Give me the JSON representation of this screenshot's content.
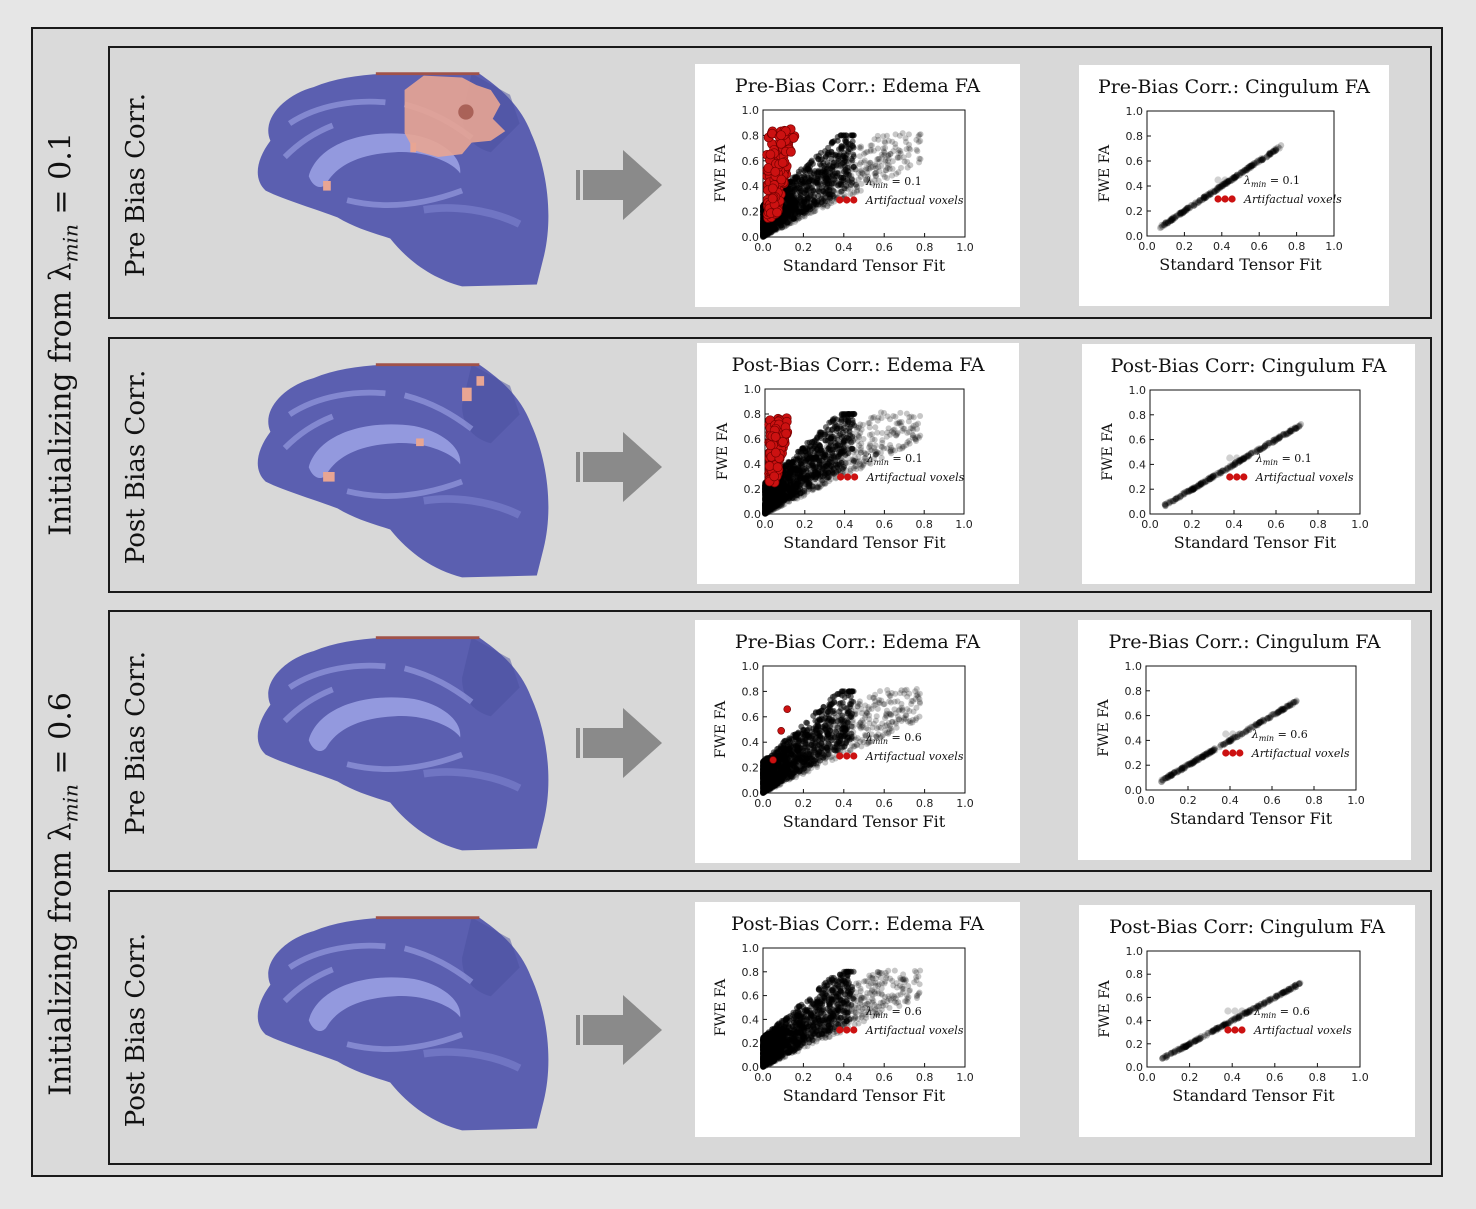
{
  "groups": [
    {
      "label": "Initializing from λ",
      "sub": "min",
      "eq": " = 0.1"
    },
    {
      "label": "Initializing from λ",
      "sub": "min",
      "eq": " = 0.6"
    }
  ],
  "rows": [
    {
      "label": "Pre Bias Corr.",
      "lambda": "0.1",
      "brain_highlight": "large"
    },
    {
      "label": "Post Bias Corr.",
      "lambda": "0.1",
      "brain_highlight": "small"
    },
    {
      "label": "Pre Bias Corr.",
      "lambda": "0.6",
      "brain_highlight": "none"
    },
    {
      "label": "Post Bias Corr.",
      "lambda": "0.6",
      "brain_highlight": "none"
    }
  ],
  "colors": {
    "brain": "#5b5fb0",
    "brain_light": "#9ea3e6",
    "highlight": "#e8a593",
    "artifact": "#cc1111",
    "normal": "#000000",
    "arrow": "#8a8a8a"
  },
  "icons": {
    "arrow": "right-arrow-icon",
    "brain": "brain-sagittal-slice"
  },
  "chart_data": [
    {
      "type": "scatter",
      "kind": "edema",
      "title": "Pre-Bias Corr.: Edema FA",
      "xlabel": "Standard Tensor Fit",
      "ylabel": "FWE FA",
      "xlim": [
        0,
        1
      ],
      "ylim": [
        0,
        1
      ],
      "xticks": [
        "0.0",
        "0.2",
        "0.4",
        "0.6",
        "0.8",
        "1.0"
      ],
      "yticks": [
        "0.0",
        "0.2",
        "0.4",
        "0.6",
        "0.8",
        "1.0"
      ],
      "legend": [
        {
          "name": "λ",
          "sub": "min",
          "eq": " = 0.1"
        },
        {
          "name": "Artifactual voxels"
        }
      ],
      "legend_position": "lower-right",
      "series": [
        {
          "name": "λmin = 0.1",
          "color": "#000000",
          "description": "dense wedge, x 0.0-0.78, y 0.0-0.82"
        },
        {
          "name": "Artifactual voxels",
          "color": "#cc1111",
          "x_range": [
            0.02,
            0.17
          ],
          "y_range": [
            0.15,
            0.85
          ]
        }
      ]
    },
    {
      "type": "scatter",
      "kind": "cingulum",
      "title": "Pre-Bias Corr.: Cingulum FA",
      "xlabel": "Standard Tensor Fit",
      "ylabel": "FWE FA",
      "xlim": [
        0,
        1
      ],
      "ylim": [
        0,
        1
      ],
      "xticks": [
        "0.0",
        "0.2",
        "0.4",
        "0.6",
        "0.8",
        "1.0"
      ],
      "yticks": [
        "0.0",
        "0.2",
        "0.4",
        "0.6",
        "0.8",
        "1.0"
      ],
      "legend": [
        {
          "name": "λ",
          "sub": "min",
          "eq": " = 0.1"
        },
        {
          "name": "Artifactual voxels"
        }
      ],
      "legend_position": "lower-right",
      "series": [
        {
          "name": "λmin = 0.1",
          "color": "#000000",
          "x_range": [
            0.07,
            0.72
          ],
          "y_range": [
            0.07,
            0.72
          ]
        }
      ]
    },
    {
      "type": "scatter",
      "kind": "edema",
      "title": "Post-Bias Corr.: Edema FA",
      "xlabel": "Standard Tensor Fit",
      "ylabel": "FWE FA",
      "xlim": [
        0,
        1
      ],
      "ylim": [
        0,
        1
      ],
      "xticks": [
        "0.0",
        "0.2",
        "0.4",
        "0.6",
        "0.8",
        "1.0"
      ],
      "yticks": [
        "0.0",
        "0.2",
        "0.4",
        "0.6",
        "0.8",
        "1.0"
      ],
      "legend": [
        {
          "name": "λ",
          "sub": "min",
          "eq": " = 0.1"
        },
        {
          "name": "Artifactual voxels"
        }
      ],
      "legend_position": "lower-right",
      "series": [
        {
          "name": "λmin = 0.1",
          "color": "#000000",
          "description": "dense wedge, x 0.0-0.76, y 0.0-0.80"
        },
        {
          "name": "Artifactual voxels",
          "color": "#cc1111",
          "x_range": [
            0.02,
            0.13
          ],
          "y_range": [
            0.25,
            0.77
          ]
        }
      ]
    },
    {
      "type": "scatter",
      "kind": "cingulum",
      "title": "Post-Bias Corr: Cingulum FA",
      "xlabel": "Standard Tensor Fit",
      "ylabel": "FWE FA",
      "xlim": [
        0,
        1
      ],
      "ylim": [
        0,
        1
      ],
      "xticks": [
        "0.0",
        "0.2",
        "0.4",
        "0.6",
        "0.8",
        "1.0"
      ],
      "yticks": [
        "0.0",
        "0.2",
        "0.4",
        "0.6",
        "0.8",
        "1.0"
      ],
      "legend": [
        {
          "name": "λ",
          "sub": "min",
          "eq": " = 0.1"
        },
        {
          "name": "Artifactual voxels"
        }
      ],
      "legend_position": "lower-right",
      "series": [
        {
          "name": "λmin = 0.1",
          "color": "#000000",
          "x_range": [
            0.07,
            0.72
          ],
          "y_range": [
            0.07,
            0.72
          ]
        }
      ]
    },
    {
      "type": "scatter",
      "kind": "edema",
      "title": "Pre-Bias Corr.: Edema FA",
      "xlabel": "Standard Tensor Fit",
      "ylabel": "FWE FA",
      "xlim": [
        0,
        1
      ],
      "ylim": [
        0,
        1
      ],
      "xticks": [
        "0.0",
        "0.2",
        "0.4",
        "0.6",
        "0.8",
        "1.0"
      ],
      "yticks": [
        "0.0",
        "0.2",
        "0.4",
        "0.6",
        "0.8",
        "1.0"
      ],
      "legend": [
        {
          "name": "λ",
          "sub": "min",
          "eq": " = 0.6"
        },
        {
          "name": "Artifactual voxels"
        }
      ],
      "legend_position": "lower-right",
      "series": [
        {
          "name": "λmin = 0.6",
          "color": "#000000",
          "description": "dense wedge, x 0.0-0.78, y 0.0-0.76"
        },
        {
          "name": "Artifactual voxels",
          "color": "#cc1111",
          "points": [
            [
              0.12,
              0.66
            ],
            [
              0.09,
              0.49
            ],
            [
              0.05,
              0.26
            ]
          ]
        }
      ]
    },
    {
      "type": "scatter",
      "kind": "cingulum",
      "title": "Pre-Bias Corr.: Cingulum FA",
      "xlabel": "Standard Tensor Fit",
      "ylabel": "FWE FA",
      "xlim": [
        0,
        1
      ],
      "ylim": [
        0,
        1
      ],
      "xticks": [
        "0.0",
        "0.2",
        "0.4",
        "0.6",
        "0.8",
        "1.0"
      ],
      "yticks": [
        "0.0",
        "0.2",
        "0.4",
        "0.6",
        "0.8",
        "1.0"
      ],
      "legend": [
        {
          "name": "λ",
          "sub": "min",
          "eq": " = 0.6"
        },
        {
          "name": "Artifactual voxels"
        }
      ],
      "legend_position": "lower-right",
      "series": [
        {
          "name": "λmin = 0.6",
          "color": "#000000",
          "x_range": [
            0.07,
            0.72
          ],
          "y_range": [
            0.07,
            0.72
          ]
        }
      ]
    },
    {
      "type": "scatter",
      "kind": "edema",
      "title": "Post-Bias Corr.: Edema FA",
      "xlabel": "Standard Tensor Fit",
      "ylabel": "FWE FA",
      "xlim": [
        0,
        1
      ],
      "ylim": [
        0,
        1
      ],
      "xticks": [
        "0.0",
        "0.2",
        "0.4",
        "0.6",
        "0.8",
        "1.0"
      ],
      "yticks": [
        "0.0",
        "0.2",
        "0.4",
        "0.6",
        "0.8",
        "1.0"
      ],
      "legend": [
        {
          "name": "λ",
          "sub": "min",
          "eq": " = 0.6"
        },
        {
          "name": "Artifactual voxels"
        }
      ],
      "legend_position": "lower-right",
      "series": [
        {
          "name": "λmin = 0.6",
          "color": "#000000",
          "description": "dense wedge, x 0.0-0.78, y 0.0-0.77"
        }
      ]
    },
    {
      "type": "scatter",
      "kind": "cingulum",
      "title": "Post-Bias Corr: Cingulum FA",
      "xlabel": "Standard Tensor Fit",
      "ylabel": "FWE FA",
      "xlim": [
        0,
        1
      ],
      "ylim": [
        0,
        1
      ],
      "xticks": [
        "0.0",
        "0.2",
        "0.4",
        "0.6",
        "0.8",
        "1.0"
      ],
      "yticks": [
        "0.0",
        "0.2",
        "0.4",
        "0.6",
        "0.8",
        "1.0"
      ],
      "legend": [
        {
          "name": "λ",
          "sub": "min",
          "eq": " = 0.6"
        },
        {
          "name": "Artifactual voxels"
        }
      ],
      "legend_position": "lower-right",
      "series": [
        {
          "name": "λmin = 0.6",
          "color": "#000000",
          "x_range": [
            0.07,
            0.72
          ],
          "y_range": [
            0.07,
            0.72
          ]
        }
      ]
    }
  ]
}
